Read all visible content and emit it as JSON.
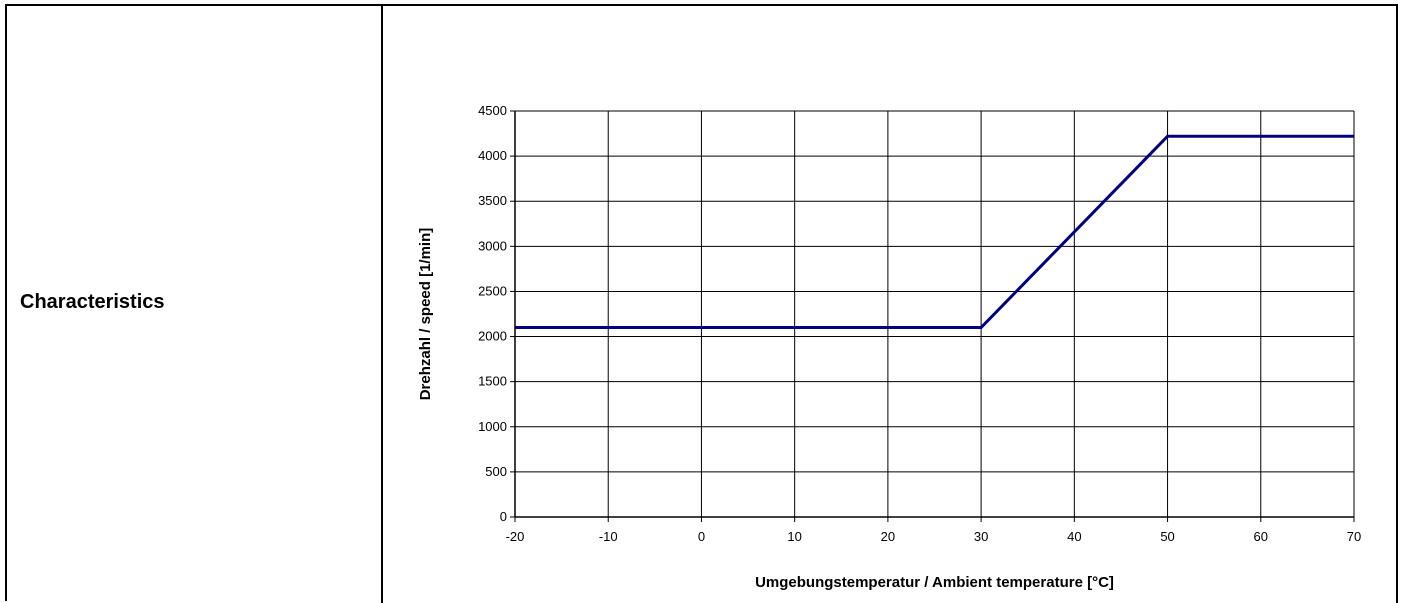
{
  "row_label": "Characteristics",
  "chart_data": {
    "type": "line",
    "title": "",
    "xlabel": "Umgebungstemperatur / Ambient temperature [°C]",
    "ylabel": "Drehzahl / speed [1/min]",
    "xlim": [
      -20,
      70
    ],
    "ylim": [
      0,
      4500
    ],
    "x_ticks": [
      -20,
      -10,
      0,
      10,
      20,
      30,
      40,
      50,
      60,
      70
    ],
    "y_ticks": [
      0,
      500,
      1000,
      1500,
      2000,
      2500,
      3000,
      3500,
      4000,
      4500
    ],
    "grid": true,
    "series": [
      {
        "color": "#000080",
        "x": [
          -20,
          30,
          50,
          70
        ],
        "y": [
          2100,
          2100,
          4220,
          4220
        ]
      }
    ]
  }
}
